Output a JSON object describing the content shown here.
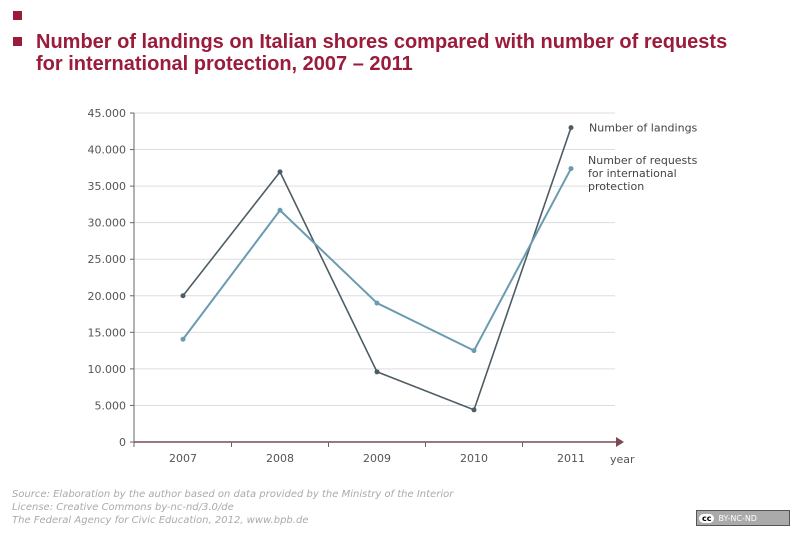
{
  "title": "Number of landings on Italian shores compared with number of requests for international protection, 2007 – 2011",
  "footer": {
    "source": "Source: Elaboration by the author based on data provided by the Ministry of the Interior",
    "license": "License: Creative Commons by-nc-nd/3.0/de",
    "publisher": "The Federal Agency for Civic Education, 2012, www.bpb.de",
    "badge_cc": "cc",
    "badge_text": "BY-NC-ND"
  },
  "chart_data": {
    "type": "line",
    "title": "Number of landings on Italian shores compared with number of requests for international protection, 2007 – 2011",
    "xlabel": "year",
    "ylabel": "",
    "categories": [
      "2007",
      "2008",
      "2009",
      "2010",
      "2011"
    ],
    "ylim": [
      0,
      45000
    ],
    "yticks": [
      "0",
      "5.000",
      "10.000",
      "15.000",
      "20.000",
      "25.000",
      "30.000",
      "35.000",
      "40.000",
      "45.000"
    ],
    "grid": true,
    "legend": "right, inline labels at line ends",
    "series": [
      {
        "name": "Number of landings",
        "values": [
          20000,
          36950,
          9600,
          4400,
          43000
        ],
        "color": "#4d5d66"
      },
      {
        "name": "Number of requests for international protection",
        "values": [
          14050,
          31700,
          19000,
          12500,
          37400
        ],
        "color": "#6a9bb0"
      }
    ],
    "axis_color": "#7a4a55"
  }
}
